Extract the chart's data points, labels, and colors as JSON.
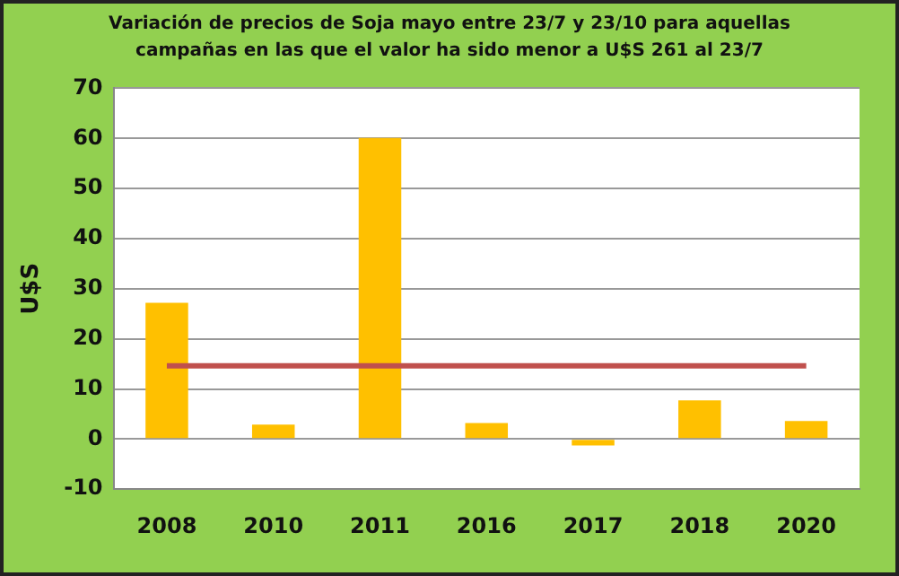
{
  "chart_data": {
    "type": "bar",
    "title": "Variación de precios de Soja mayo entre  23/7 y 23/10 para aquellas campañas en las que el valor ha sido menor a U$S 261 al 23/7",
    "ylabel": "U$S",
    "categories": [
      "2008",
      "2010",
      "2011",
      "2016",
      "2017",
      "2018",
      "2020"
    ],
    "series": [
      {
        "color": "#ffc000",
        "values": [
          27.2,
          2.9,
          60.1,
          3.2,
          -1.3,
          7.7,
          3.6
        ]
      },
      {
        "type": "line",
        "color": "#c0504d",
        "values": [
          14.6,
          14.6,
          14.6,
          14.6,
          14.6,
          14.6,
          14.6
        ]
      }
    ],
    "ylim": [
      -10,
      70
    ],
    "yticks": [
      -10,
      0,
      10,
      20,
      30,
      40,
      50,
      60,
      70
    ],
    "grid": "y",
    "legend": false,
    "marker": "none"
  }
}
